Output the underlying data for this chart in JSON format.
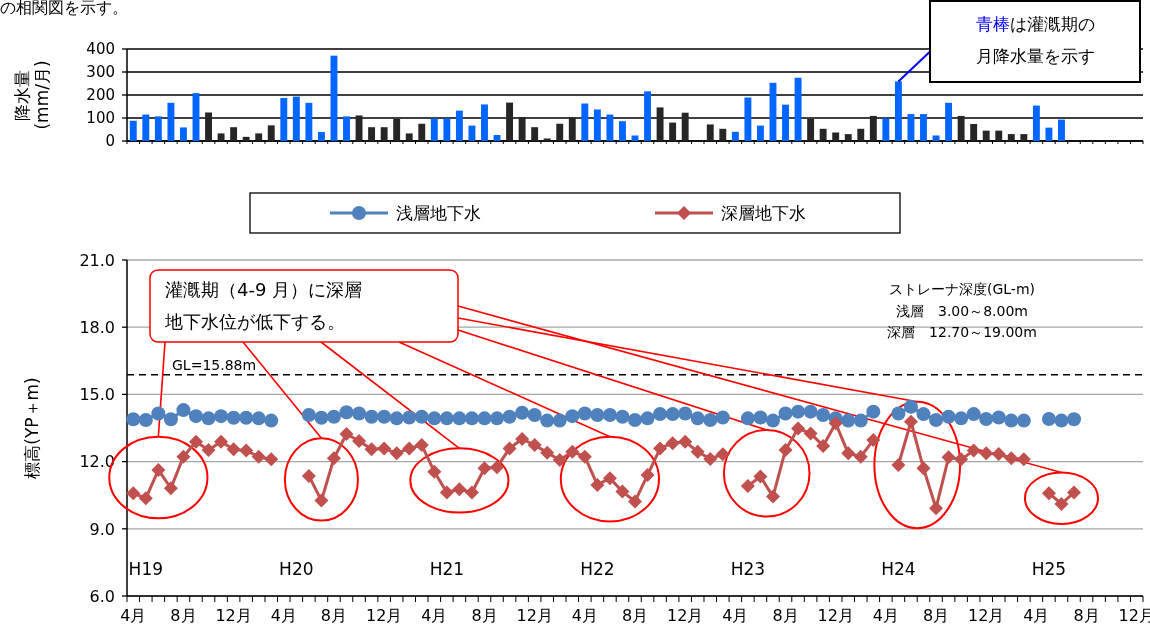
{
  "chart_data": [
    {
      "type": "bar",
      "ylabel": "降水量\n(mm/月)",
      "categories": [
        null,
        null,
        null,
        null,
        null,
        null,
        null,
        null,
        null,
        null,
        null,
        null,
        null,
        null,
        null,
        null,
        null,
        null,
        null,
        null,
        null,
        null,
        null,
        null,
        null,
        null,
        null,
        null,
        null,
        null,
        null,
        null,
        null,
        null,
        null,
        null,
        null,
        null,
        null,
        null,
        null,
        null,
        null,
        null,
        null,
        null,
        null,
        null,
        null,
        null,
        null,
        null,
        null,
        null,
        null,
        null,
        null,
        null,
        null,
        null,
        null,
        null,
        null,
        null,
        null,
        null,
        null,
        null,
        null,
        null,
        null,
        null,
        null,
        null,
        null,
        null,
        null,
        null,
        null,
        null,
        null
      ],
      "values": [
        88,
        115,
        107,
        166,
        59,
        208,
        124,
        33,
        60,
        18,
        33,
        68,
        187,
        193,
        166,
        39,
        371,
        107,
        111,
        60,
        60,
        96,
        33,
        75,
        98,
        98,
        132,
        67,
        159,
        26,
        167,
        104,
        60,
        11,
        75,
        102,
        163,
        137,
        115,
        86,
        24,
        216,
        146,
        80,
        123,
        null,
        72,
        53,
        40,
        189,
        67,
        253,
        158,
        275,
        96,
        53,
        37,
        30,
        53,
        109,
        98,
        259,
        117,
        117,
        24,
        166,
        109,
        74,
        45,
        45,
        30,
        30,
        154,
        58,
        93,
        null,
        null,
        null,
        null,
        null,
        null
      ],
      "colors": [
        "#0066ff",
        "#0066ff",
        "#0066ff",
        "#0066ff",
        "#0066ff",
        "#0066ff",
        "#262626",
        "#262626",
        "#262626",
        "#262626",
        "#262626",
        "#262626",
        "#0066ff",
        "#0066ff",
        "#0066ff",
        "#0066ff",
        "#0066ff",
        "#0066ff",
        "#262626",
        "#262626",
        "#262626",
        "#262626",
        "#262626",
        "#262626",
        "#0066ff",
        "#0066ff",
        "#0066ff",
        "#0066ff",
        "#0066ff",
        "#0066ff",
        "#262626",
        "#262626",
        "#262626",
        "#262626",
        "#262626",
        "#262626",
        "#0066ff",
        "#0066ff",
        "#0066ff",
        "#0066ff",
        "#0066ff",
        "#0066ff",
        "#262626",
        "#262626",
        "#262626",
        null,
        "#262626",
        "#262626",
        "#0066ff",
        "#0066ff",
        "#0066ff",
        "#0066ff",
        "#0066ff",
        "#0066ff",
        "#262626",
        "#262626",
        "#262626",
        "#262626",
        "#262626",
        "#262626",
        "#0066ff",
        "#0066ff",
        "#0066ff",
        "#0066ff",
        "#0066ff",
        "#0066ff",
        "#262626",
        "#262626",
        "#262626",
        "#262626",
        "#262626",
        "#262626",
        "#0066ff",
        "#0066ff",
        "#0066ff",
        null,
        null,
        null,
        null,
        null,
        null
      ],
      "ylim": [
        0,
        400
      ],
      "yticks": [
        0,
        100,
        200,
        300,
        400
      ],
      "grid": "y",
      "tick_labels": "y",
      "annotations": [
        "の相関図を示す。",
        "青棒は灌漑期の月降水量を示す"
      ]
    },
    {
      "type": "line",
      "ylabel": "標高(YP＋m)",
      "categories": [
        "4月",
        null,
        null,
        null,
        "8月",
        null,
        null,
        null,
        "12月",
        null,
        null,
        null,
        "4月",
        null,
        null,
        null,
        "8月",
        null,
        null,
        null,
        "12月",
        null,
        null,
        null,
        "4月",
        null,
        null,
        null,
        "8月",
        null,
        null,
        null,
        "12月",
        null,
        null,
        null,
        "4月",
        null,
        null,
        null,
        "8月",
        null,
        null,
        null,
        "12月",
        null,
        null,
        null,
        "4月",
        null,
        null,
        null,
        "8月",
        null,
        null,
        null,
        "12月",
        null,
        null,
        null,
        "4月",
        null,
        null,
        null,
        "8月",
        null,
        null,
        null,
        "12月",
        null,
        null,
        null,
        "4月",
        null,
        null,
        null,
        "8月",
        null,
        null,
        null,
        "12月"
      ],
      "series": [
        {
          "name": "浅層地下水",
          "color": "#4f81bd",
          "marker": "circle",
          "values": [
            13.89,
            13.86,
            14.15,
            13.89,
            14.3,
            14.03,
            13.93,
            14.03,
            13.96,
            13.96,
            13.93,
            13.83,
            null,
            null,
            14.08,
            13.96,
            14.0,
            14.2,
            14.15,
            14.0,
            14.0,
            13.93,
            13.97,
            14.0,
            13.93,
            13.93,
            13.93,
            13.93,
            13.93,
            13.93,
            14.0,
            14.18,
            14.08,
            13.83,
            13.83,
            14.03,
            14.15,
            14.08,
            14.08,
            14.0,
            13.86,
            13.93,
            14.12,
            14.12,
            14.15,
            13.93,
            13.86,
            13.97,
            null,
            13.93,
            13.97,
            13.83,
            14.15,
            14.23,
            14.23,
            14.08,
            13.93,
            13.83,
            13.83,
            14.23,
            null,
            14.15,
            14.45,
            14.12,
            13.86,
            14.0,
            13.93,
            14.12,
            13.9,
            13.97,
            13.83,
            13.83,
            null,
            13.9,
            13.83,
            13.89,
            null,
            null,
            null,
            null,
            null
          ]
        },
        {
          "name": "深層地下水",
          "color": "#c0504d",
          "marker": "diamond",
          "values": [
            10.59,
            10.36,
            11.63,
            10.81,
            12.22,
            12.89,
            12.52,
            12.89,
            12.55,
            12.49,
            12.22,
            12.1,
            null,
            null,
            11.36,
            10.26,
            12.15,
            13.23,
            12.92,
            12.55,
            12.59,
            12.37,
            12.59,
            12.74,
            11.55,
            10.62,
            10.77,
            10.62,
            11.7,
            11.75,
            12.59,
            13.01,
            12.74,
            12.4,
            12.07,
            12.44,
            12.22,
            10.96,
            11.26,
            10.66,
            10.22,
            11.4,
            12.59,
            12.82,
            12.89,
            12.44,
            12.12,
            12.33,
            null,
            10.91,
            11.33,
            10.44,
            12.52,
            13.48,
            13.26,
            12.7,
            13.71,
            12.37,
            12.22,
            12.96,
            null,
            11.85,
            13.78,
            11.7,
            9.92,
            12.19,
            12.1,
            12.49,
            12.37,
            12.34,
            12.15,
            12.1,
            null,
            10.59,
            10.11,
            10.62,
            null,
            null,
            null,
            null,
            null
          ]
        }
      ],
      "ylim": [
        6,
        21
      ],
      "yticks": [
        {
          "value": 6,
          "label": "6.0"
        },
        {
          "value": 9,
          "label": "9.0"
        },
        {
          "value": 12,
          "label": "12.0"
        },
        {
          "value": 15,
          "label": "15.0"
        },
        {
          "value": 18,
          "label": "18.0"
        },
        {
          "value": 21,
          "label": "21.0"
        }
      ],
      "grid": "y",
      "legend": "top",
      "ref_lines": [
        {
          "axis": "y",
          "value": 15.88,
          "label": "GL=15.88m",
          "color": "#000000",
          "line_style": "dashed"
        }
      ],
      "annotations": [
        "灌漑期（4-9 月）に深層地下水位が低下する。",
        "ストレーナ深度(GL-m)\n浅層　3.00～8.00m\n深層　12.70～19.00m",
        "H19",
        "H20",
        "H21",
        "H22",
        "H23",
        "H24",
        "H25"
      ]
    }
  ]
}
